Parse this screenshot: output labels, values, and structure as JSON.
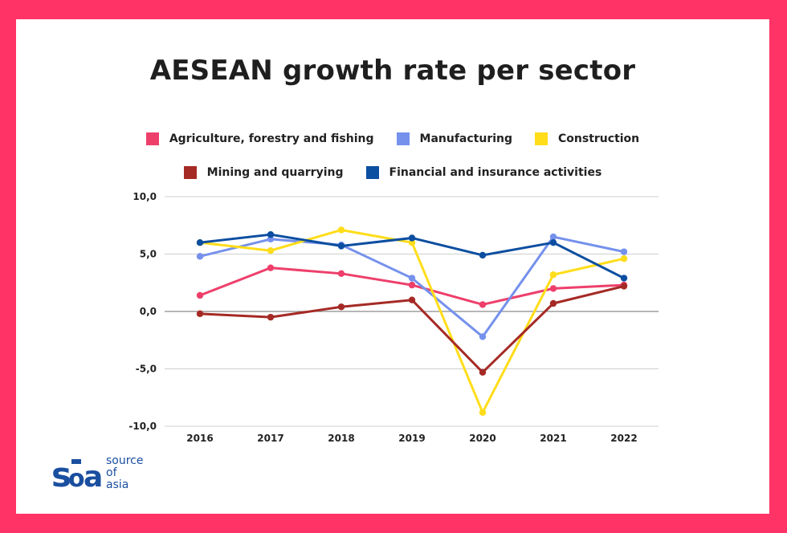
{
  "title": "AESEAN growth rate per sector",
  "brand": {
    "lines": [
      "source",
      "of",
      "asia"
    ]
  },
  "colors": {
    "frame": "#ff3366",
    "brand": "#1a4fa0"
  },
  "chart_data": {
    "type": "line",
    "title": "AESEAN growth rate per sector",
    "x": [
      "2016",
      "2017",
      "2018",
      "2019",
      "2020",
      "2021",
      "2022"
    ],
    "ylim": [
      -10,
      10
    ],
    "yticks": [
      10,
      5,
      0,
      -5,
      -10
    ],
    "ytick_labels": [
      "10,0",
      "5,0",
      "0,0",
      "-5,0",
      "-10,0"
    ],
    "grid": true,
    "legend_position": "top",
    "series": [
      {
        "name": "Agriculture, forestry and fishing",
        "color": "#ee3f6b",
        "values": [
          1.4,
          3.8,
          3.3,
          2.3,
          0.6,
          2.0,
          2.3
        ]
      },
      {
        "name": "Manufacturing",
        "color": "#7591ec",
        "values": [
          4.8,
          6.3,
          5.8,
          2.9,
          -2.2,
          6.5,
          5.2
        ]
      },
      {
        "name": "Construction",
        "color": "#ffdd1a",
        "values": [
          6.0,
          5.3,
          7.1,
          6.0,
          -8.8,
          3.2,
          4.6
        ]
      },
      {
        "name": "Mining and quarrying",
        "color": "#a52a25",
        "values": [
          -0.2,
          -0.5,
          0.4,
          1.0,
          -5.3,
          0.7,
          2.2
        ]
      },
      {
        "name": "Financial and insurance activities",
        "color": "#0c4ea0",
        "values": [
          6.0,
          6.7,
          5.7,
          6.4,
          4.9,
          6.0,
          2.9
        ]
      }
    ]
  }
}
